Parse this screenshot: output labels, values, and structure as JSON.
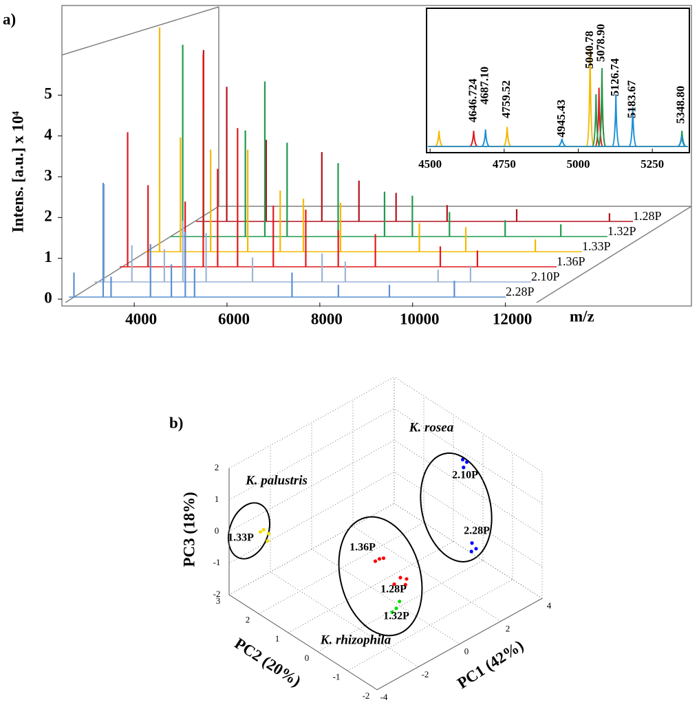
{
  "chart_data": [
    {
      "type": "spectra3d",
      "panel_label": "a)",
      "ylabel": "Intens. [a.u.] x 10⁴",
      "xlabel": "m/z",
      "xlim": [
        2500,
        13000
      ],
      "xticks": [
        4000,
        6000,
        8000,
        10000,
        12000
      ],
      "ylim": [
        0,
        6
      ],
      "yticks": [
        0,
        1,
        2,
        3,
        4,
        5
      ],
      "series": [
        {
          "name": "1.28P",
          "color": "#b3121b",
          "x": [
            2750,
            3250,
            4100,
            5300,
            6100,
            6900,
            8000,
            9500,
            11500
          ],
          "values": [
            4.2,
            3.3,
            2.0,
            1.7,
            1.0,
            0.7,
            0.4,
            0.3,
            0.2
          ]
        },
        {
          "name": "1.32P",
          "color": "#1f9a4e",
          "x": [
            2850,
            3300,
            4200,
            4620,
            5100,
            6200,
            7200,
            7800,
            8600,
            9800,
            11000
          ],
          "values": [
            4.7,
            3.1,
            2.6,
            3.8,
            2.3,
            1.8,
            1.1,
            1.0,
            0.6,
            0.4,
            0.3
          ]
        },
        {
          "name": "1.33P",
          "color": "#f5b800",
          "x": [
            2900,
            3350,
            4000,
            4800,
            5500,
            6000,
            6800,
            8500,
            9500,
            11000
          ],
          "values": [
            5.5,
            2.8,
            2.5,
            2.5,
            1.5,
            1.3,
            1.2,
            0.7,
            0.6,
            0.3
          ]
        },
        {
          "name": "1.36P",
          "color": "#e0191c",
          "x": [
            2760,
            3200,
            4000,
            4390,
            4700,
            5130,
            5900,
            6600,
            7300,
            8100,
            9500,
            10300
          ],
          "values": [
            3.3,
            2.0,
            1.6,
            5.2,
            2.4,
            3.4,
            1.5,
            1.4,
            0.9,
            0.8,
            0.5,
            0.4
          ]
        },
        {
          "name": "2.10P",
          "color": "#9bb4d6",
          "x": [
            2800,
            3400,
            4100,
            4500,
            5000,
            6000,
            7500,
            8000,
            10000,
            10700
          ],
          "values": [
            2.4,
            0.9,
            0.8,
            1.5,
            1.2,
            0.6,
            0.7,
            0.5,
            0.3,
            0.4
          ]
        },
        {
          "name": "2.28P",
          "color": "#5b8fd0",
          "x": [
            2700,
            3330,
            3500,
            4350,
            4800,
            5100,
            5300,
            7400,
            8400,
            9500,
            10900
          ],
          "values": [
            0.6,
            2.8,
            0.5,
            1.3,
            0.8,
            1.6,
            0.7,
            0.6,
            0.3,
            0.3,
            0.4
          ]
        }
      ]
    },
    {
      "type": "spectrum",
      "xlim": [
        4488,
        5375
      ],
      "xticks": [
        4500,
        4750,
        5000,
        5250
      ],
      "ylim": [
        0,
        1
      ],
      "series": [
        {
          "color": "#f5b800",
          "x": [
            4530,
            4760,
            5040,
            5080
          ],
          "values": [
            0.12,
            0.15,
            0.75,
            0.55
          ]
        },
        {
          "color": "#e0191c",
          "x": [
            4647,
            5070,
            5080
          ],
          "values": [
            0.12,
            0.45,
            0.5
          ]
        },
        {
          "color": "#1f9a4e",
          "x": [
            5060,
            5080,
            5350
          ],
          "values": [
            0.4,
            0.6,
            0.12
          ]
        },
        {
          "color": "#1a8fd8",
          "x": [
            4687,
            4945,
            5127,
            5184,
            5349
          ],
          "values": [
            0.13,
            0.06,
            0.4,
            0.3,
            0.08
          ]
        }
      ],
      "annotations": [
        {
          "x": 4646.724,
          "label": "4646.724"
        },
        {
          "x": 4687.1,
          "label": "4687.10"
        },
        {
          "x": 4759.52,
          "label": "4759.52"
        },
        {
          "x": 4945.43,
          "label": "4945.43"
        },
        {
          "x": 5040.78,
          "label": "5040.78"
        },
        {
          "x": 5078.9,
          "label": "5078.90"
        },
        {
          "x": 5126.74,
          "label": "5126.74"
        },
        {
          "x": 5183.67,
          "label": "5183.67"
        },
        {
          "x": 5348.8,
          "label": "5348.80"
        }
      ]
    },
    {
      "type": "scatter3d",
      "panel_label": "b)",
      "xlabel": "PC1 (42%)",
      "ylabel": "PC2 (20%)",
      "zlabel": "PC3 (18%)",
      "xlim": [
        -4,
        4
      ],
      "xticks": [
        -4,
        -2,
        0,
        2,
        4
      ],
      "ylim": [
        -2,
        3
      ],
      "yticks": [
        -2,
        -1,
        0,
        1,
        2,
        3
      ],
      "zlim": [
        -2,
        2
      ],
      "zticks": [
        -2,
        -1,
        0,
        1,
        2
      ],
      "grid": true,
      "series": [
        {
          "name": "1.33P",
          "color": "#f0e000",
          "x": [
            -3.2,
            -2.9,
            -2.8,
            -3.0
          ],
          "y": [
            2.5,
            2.6,
            2.5,
            2.4
          ],
          "z": [
            0,
            -0.1,
            -0.2,
            -0.3
          ]
        },
        {
          "name": "1.36P",
          "color": "#ff0000",
          "x": [
            -0.5,
            -0.3,
            -0.1
          ],
          "y": [
            0.5,
            0.5,
            0.5
          ],
          "z": [
            -0.7,
            -0.7,
            -0.75
          ]
        },
        {
          "name": "1.28P",
          "color": "#ff0000",
          "x": [
            -0.3,
            0,
            0.3,
            0.1
          ],
          "y": [
            0,
            0,
            0,
            -0.1
          ],
          "z": [
            -1.2,
            -1.1,
            -1.25,
            -1.3
          ]
        },
        {
          "name": "1.32P",
          "color": "#00e000",
          "x": [
            -0.2,
            0.1,
            -0.4
          ],
          "y": [
            0,
            0.1,
            0
          ],
          "z": [
            -2.0,
            -1.95,
            -2.05
          ]
        },
        {
          "name": "2.10P",
          "color": "#0000ff",
          "x": [
            2.3,
            2.5,
            2.2
          ],
          "y": [
            -0.5,
            -0.5,
            -0.6
          ],
          "z": [
            2.1,
            1.95,
            1.95
          ]
        },
        {
          "name": "2.28P",
          "color": "#0000ff",
          "x": [
            2.75,
            2.65,
            2.95
          ],
          "y": [
            -0.5,
            -0.55,
            -0.5
          ],
          "z": [
            -0.7,
            -0.9,
            -0.95
          ]
        }
      ],
      "annotations": [
        "K. palustris",
        "K. rosea",
        "K. rhizophila"
      ]
    }
  ]
}
